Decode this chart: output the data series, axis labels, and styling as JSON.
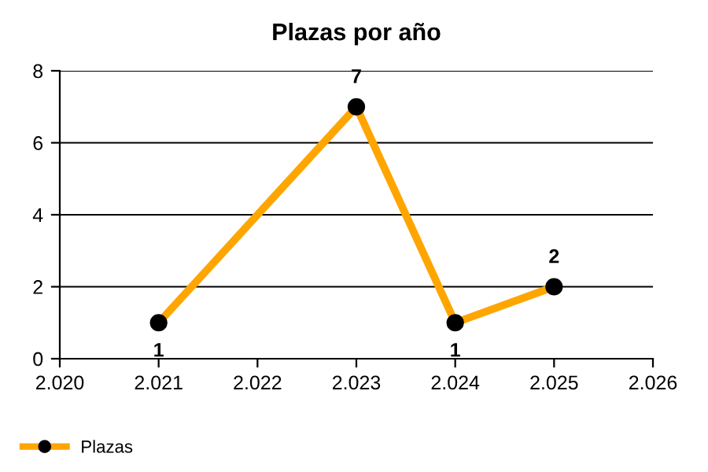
{
  "chart_data": {
    "type": "line",
    "title": "Plazas por año",
    "x": [
      2021,
      2023,
      2024,
      2025
    ],
    "series": [
      {
        "name": "Plazas",
        "color": "#ffa500",
        "values": [
          1,
          7,
          1,
          2
        ]
      }
    ],
    "xlim": [
      2020,
      2026
    ],
    "xticks": [
      {
        "value": 2020,
        "label": "2.020"
      },
      {
        "value": 2021,
        "label": "2.021"
      },
      {
        "value": 2022,
        "label": "2.022"
      },
      {
        "value": 2023,
        "label": "2.023"
      },
      {
        "value": 2024,
        "label": "2.024"
      },
      {
        "value": 2025,
        "label": "2.025"
      },
      {
        "value": 2026,
        "label": "2.026"
      }
    ],
    "ylim": [
      0,
      8
    ],
    "yticks": [
      0,
      2,
      4,
      6,
      8
    ],
    "grid": "y",
    "legend": "bottom left",
    "marker": "circle",
    "line_style": "solid",
    "data_labels": true
  }
}
